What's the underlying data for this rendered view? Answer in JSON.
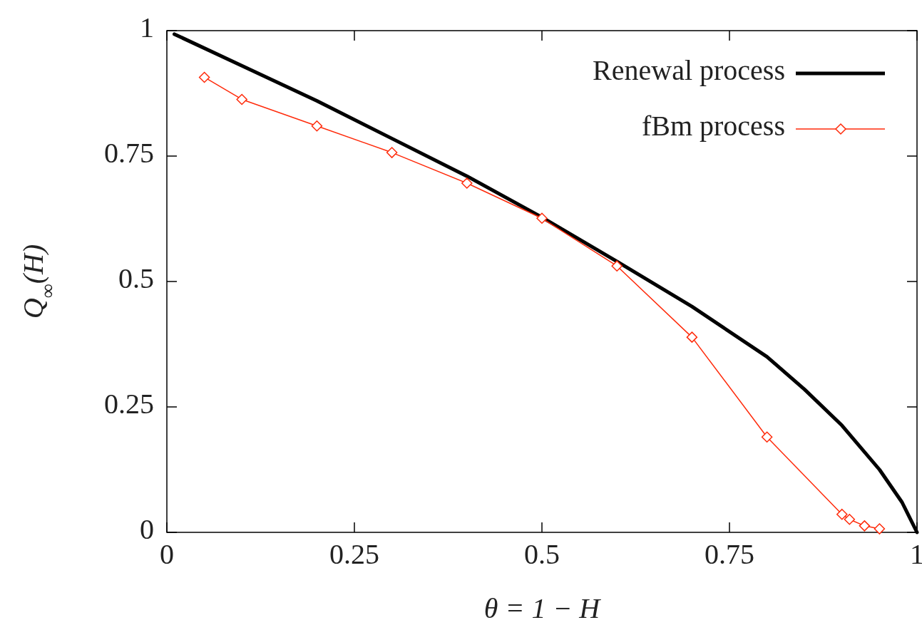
{
  "chart_data": {
    "type": "line",
    "xlabel": "θ = 1 − H",
    "ylabel": "Q$_{∞}$(H)",
    "xlim": [
      0,
      1
    ],
    "ylim": [
      0,
      1
    ],
    "xticks": [
      0,
      0.25,
      0.5,
      0.75,
      1
    ],
    "yticks": [
      0,
      0.25,
      0.5,
      0.75,
      1
    ],
    "grid": false,
    "legend": "top right",
    "series": [
      {
        "name": "Renewal process",
        "color": "#000000",
        "marker": "none",
        "x": [
          0.01,
          0.1,
          0.2,
          0.3,
          0.4,
          0.5,
          0.6,
          0.7,
          0.8,
          0.85,
          0.9,
          0.95,
          0.98,
          1.0
        ],
        "values": [
          0.993,
          0.93,
          0.86,
          0.785,
          0.71,
          0.628,
          0.54,
          0.45,
          0.35,
          0.285,
          0.213,
          0.125,
          0.06,
          0.0
        ]
      },
      {
        "name": "fBm process",
        "color": "#ff2a0a",
        "marker": "diamond",
        "x": [
          0.05,
          0.1,
          0.2,
          0.3,
          0.4,
          0.5,
          0.6,
          0.7,
          0.8,
          0.9,
          0.91,
          0.93,
          0.95
        ],
        "values": [
          0.907,
          0.863,
          0.81,
          0.757,
          0.696,
          0.626,
          0.531,
          0.389,
          0.19,
          0.036,
          0.026,
          0.013,
          0.007
        ]
      }
    ]
  }
}
